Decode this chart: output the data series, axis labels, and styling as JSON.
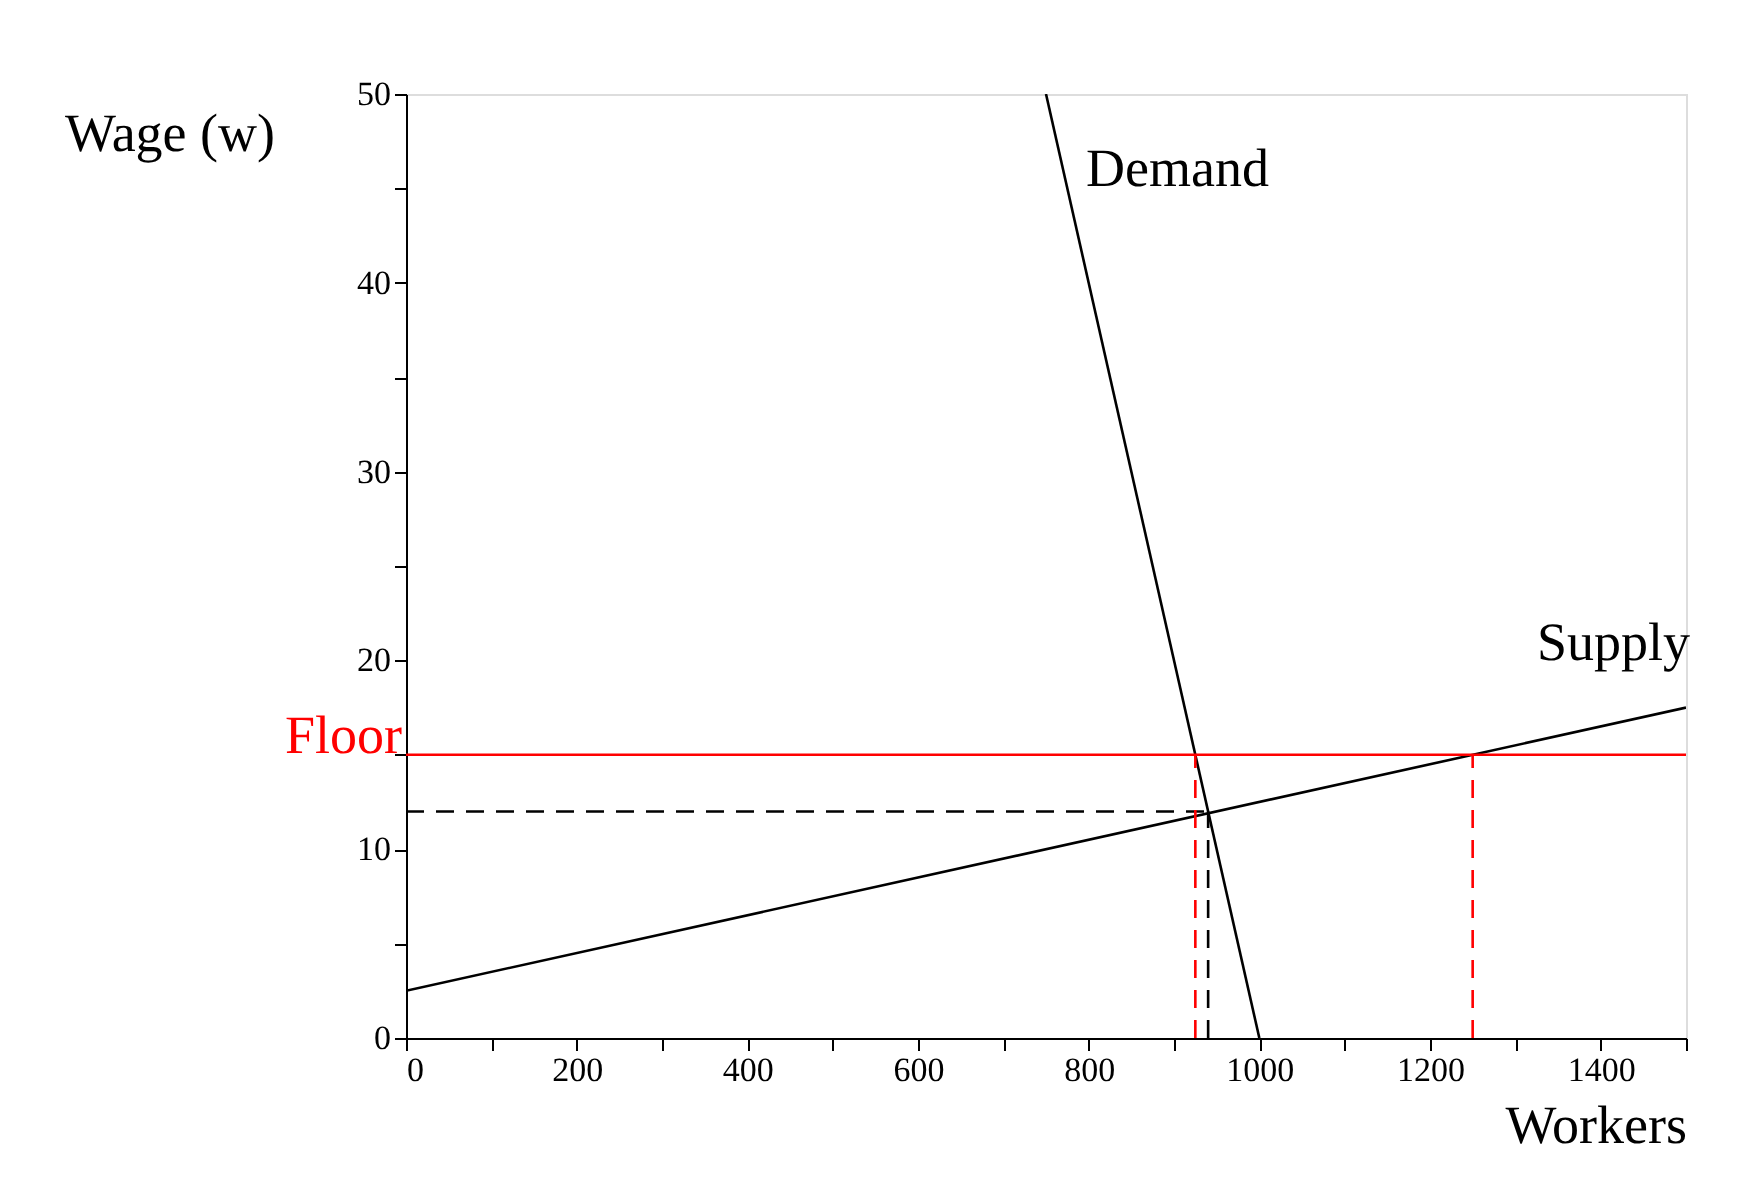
{
  "chart_data": {
    "type": "line",
    "xlabel": "Workers",
    "ylabel": "Wage (w)",
    "xlim": [
      0,
      1500
    ],
    "ylim": [
      0,
      50
    ],
    "xticks": [
      0,
      {
        "value": 100,
        "label": null
      },
      200,
      {
        "value": 300,
        "label": null
      },
      400,
      {
        "value": 500,
        "label": null
      },
      600,
      {
        "value": 700,
        "label": null
      },
      800,
      {
        "value": 900,
        "label": null
      },
      1000,
      {
        "value": 1100,
        "label": null
      },
      1200,
      {
        "value": 1300,
        "label": null
      },
      1400,
      {
        "value": 1500,
        "label": null
      }
    ],
    "yticks": [
      0,
      {
        "value": 5,
        "label": null
      },
      10,
      {
        "value": 15,
        "label": null
      },
      20,
      {
        "value": 25,
        "label": null
      },
      30,
      {
        "value": 35,
        "label": null
      },
      40,
      {
        "value": 45,
        "label": null
      },
      50
    ],
    "grid": false,
    "series": [
      {
        "name": "Demand",
        "color": "#000000",
        "x": [
          750,
          1000
        ],
        "values": [
          50,
          0
        ]
      },
      {
        "name": "Supply",
        "color": "#000000",
        "x": [
          0,
          1500
        ],
        "values": [
          2.5,
          17.5
        ]
      },
      {
        "color": "#000000",
        "x": [
          0,
          940
        ],
        "values": [
          12,
          12
        ],
        "line_style": "dashed"
      },
      {
        "color": "#000000",
        "x": [
          940,
          940
        ],
        "values": [
          0,
          12
        ],
        "line_style": "dashed"
      },
      {
        "color": "#ff0000",
        "x": [
          925,
          925
        ],
        "values": [
          0,
          15
        ],
        "line_style": "dashed"
      },
      {
        "color": "#ff0000",
        "x": [
          1250,
          1250
        ],
        "values": [
          0,
          15
        ],
        "line_style": "dashed"
      }
    ],
    "ref_lines": [
      {
        "axis": "y",
        "value": 15,
        "label": "Floor",
        "color": "#ff0000"
      }
    ]
  }
}
